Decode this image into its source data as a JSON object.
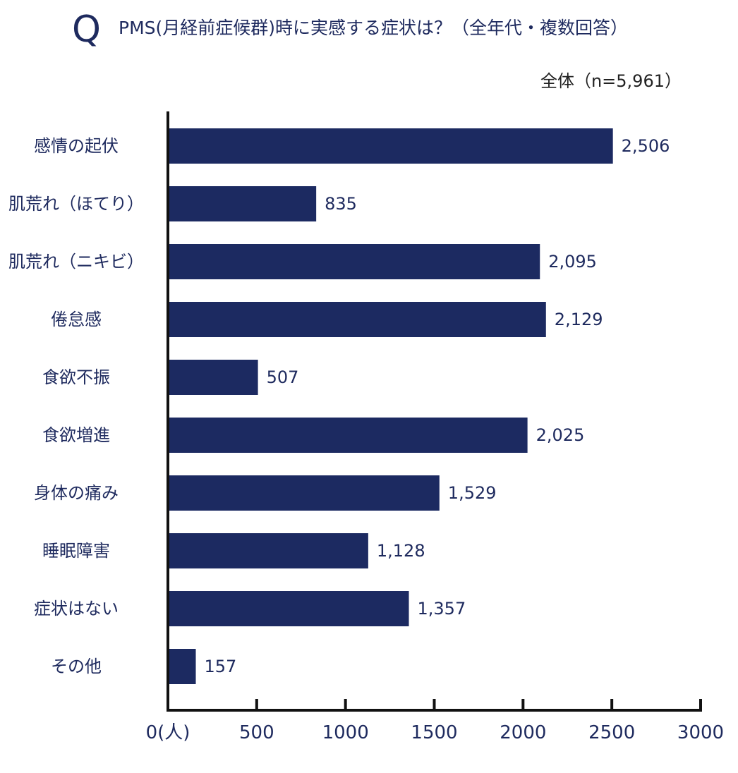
{
  "header": {
    "q_mark": "Q",
    "question": "PMS(月経前症候群)時に実感する症状は？（全年代・複数回答）",
    "sample": "全体（n=5,961）"
  },
  "colors": {
    "bar": "#1c2a61",
    "text": "#1e2a5e",
    "axis": "#111111"
  },
  "chart_data": {
    "type": "bar",
    "orientation": "horizontal",
    "categories": [
      "感情の起伏",
      "肌荒れ（ほてり）",
      "肌荒れ（ニキビ）",
      "倦怠感",
      "食欲不振",
      "食欲増進",
      "身体の痛み",
      "睡眠障害",
      "症状はない",
      "その他"
    ],
    "values": [
      2506,
      835,
      2095,
      2129,
      507,
      2025,
      1529,
      1128,
      1357,
      157
    ],
    "value_labels": [
      "2,506",
      "835",
      "2,095",
      "2,129",
      "507",
      "2,025",
      "1,529",
      "1,128",
      "1,357",
      "157"
    ],
    "xlim": [
      0,
      3000
    ],
    "x_ticks": [
      0,
      500,
      1000,
      1500,
      2000,
      2500,
      3000
    ],
    "x_tick_labels": [
      "0(人)",
      "500",
      "1000",
      "1500",
      "2000",
      "2500",
      "3000"
    ],
    "grid": false
  }
}
